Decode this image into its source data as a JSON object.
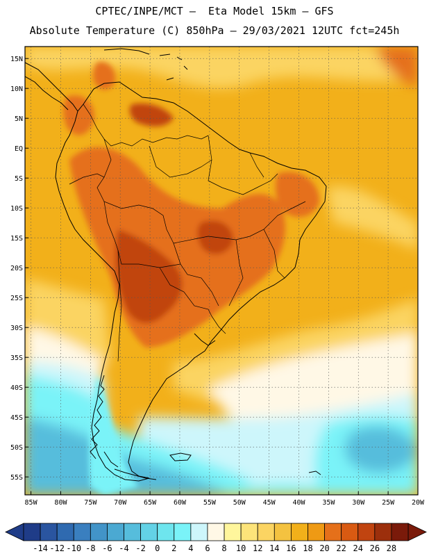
{
  "title_line1": "CPTEC/INPE/MCT —  Eta Model 15km — GFS",
  "title_line2": "Absolute Temperature (C) 850hPa — 29/03/2021 12UTC fct=245h",
  "map": {
    "lon_range": [
      -86,
      -20
    ],
    "lat_range": [
      -58,
      17
    ],
    "lat_ticks": [
      {
        "value": 15,
        "label": "15N"
      },
      {
        "value": 10,
        "label": "10N"
      },
      {
        "value": 5,
        "label": "5N"
      },
      {
        "value": 0,
        "label": "EQ"
      },
      {
        "value": -5,
        "label": "5S"
      },
      {
        "value": -10,
        "label": "10S"
      },
      {
        "value": -15,
        "label": "15S"
      },
      {
        "value": -20,
        "label": "20S"
      },
      {
        "value": -25,
        "label": "25S"
      },
      {
        "value": -30,
        "label": "30S"
      },
      {
        "value": -35,
        "label": "35S"
      },
      {
        "value": -40,
        "label": "40S"
      },
      {
        "value": -45,
        "label": "45S"
      },
      {
        "value": -50,
        "label": "50S"
      },
      {
        "value": -55,
        "label": "55S"
      }
    ],
    "lon_ticks": [
      {
        "value": -85,
        "label": "85W"
      },
      {
        "value": -80,
        "label": "80W"
      },
      {
        "value": -75,
        "label": "75W"
      },
      {
        "value": -70,
        "label": "70W"
      },
      {
        "value": -65,
        "label": "65W"
      },
      {
        "value": -60,
        "label": "60W"
      },
      {
        "value": -55,
        "label": "55W"
      },
      {
        "value": -50,
        "label": "50W"
      },
      {
        "value": -45,
        "label": "45W"
      },
      {
        "value": -40,
        "label": "40W"
      },
      {
        "value": -35,
        "label": "35W"
      },
      {
        "value": -30,
        "label": "30W"
      },
      {
        "value": -25,
        "label": "25W"
      },
      {
        "value": -20,
        "label": "20W"
      }
    ],
    "grid": "dotted every 5 degrees"
  },
  "colorbar": {
    "labels": [
      "-14",
      "-12",
      "-10",
      "-8",
      "-6",
      "-4",
      "-2",
      "0",
      "2",
      "4",
      "6",
      "8",
      "10",
      "12",
      "14",
      "16",
      "18",
      "20",
      "22",
      "24",
      "26",
      "28"
    ],
    "colors": [
      "#1f3c88",
      "#2a55a0",
      "#2f6ab0",
      "#3a7fbf",
      "#4294c8",
      "#4ba9d2",
      "#56bddc",
      "#63d2e6",
      "#6ee5ee",
      "#7af3f8",
      "#cdf6fb",
      "#fff8e6",
      "#fff69c",
      "#fde47a",
      "#fbd462",
      "#f4c240",
      "#f2b01a",
      "#ef9a14",
      "#e5701a",
      "#d95a12",
      "#c14410",
      "#9c2f0c",
      "#7a1a0a"
    ],
    "min_color": "#1f3c88",
    "max_color": "#7a1a0a"
  },
  "field_colors": {
    "ocean_warm": "#f2b01a",
    "deep_warm": "#e5701a",
    "hot": "#c14410",
    "mid_yellow": "#fbd462",
    "pale": "#fff8e6",
    "cyan_light": "#cdf6fb",
    "cyan": "#7af3f8",
    "teal": "#56bddc",
    "blue": "#4294c8",
    "coast": "#000000"
  }
}
